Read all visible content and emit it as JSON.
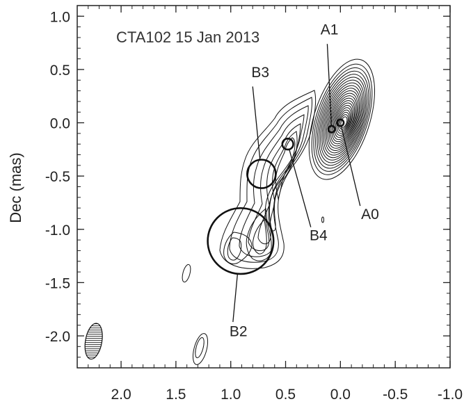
{
  "chart_data": {
    "type": "contour",
    "title": "CTA102  15 Jan 2013",
    "xlabel": "",
    "ylabel": "Dec (mas)",
    "xlim": [
      2.4,
      -1.0
    ],
    "ylim": [
      -2.3,
      1.1
    ],
    "xticks": [
      2.0,
      1.5,
      1.0,
      0.5,
      0.0,
      -0.5,
      -1.0
    ],
    "xtick_labels": [
      "2.0",
      "1.5",
      "1.0",
      "0.5",
      "0.0",
      "-0.5",
      "-1.0"
    ],
    "yticks": [
      1.0,
      0.5,
      0.0,
      -0.5,
      -1.0,
      -1.5,
      -2.0
    ],
    "ytick_labels": [
      "1.0",
      "0.5",
      "0.0",
      "-0.5",
      "-1.0",
      "-1.5",
      "-2.0"
    ],
    "grid": false,
    "components": [
      {
        "name": "A0",
        "x": 0.0,
        "y": 0.0,
        "size": 0.03,
        "label_x": -0.27,
        "label_y": -0.85,
        "leader_end": [
          -0.18,
          -0.78
        ]
      },
      {
        "name": "A1",
        "x": 0.08,
        "y": -0.06,
        "size": 0.03,
        "label_x": 0.1,
        "label_y": 0.88,
        "leader_end": [
          0.12,
          0.74
        ]
      },
      {
        "name": "B4",
        "x": 0.48,
        "y": -0.2,
        "size": 0.05,
        "label_x": 0.2,
        "label_y": -1.05,
        "leader_end": [
          0.27,
          -0.98
        ]
      },
      {
        "name": "B3",
        "x": 0.72,
        "y": -0.48,
        "size": 0.13,
        "label_x": 0.73,
        "label_y": 0.48,
        "leader_end": [
          0.8,
          0.34
        ]
      },
      {
        "name": "B2",
        "x": 0.91,
        "y": -1.11,
        "size": 0.3,
        "label_x": 0.93,
        "label_y": -1.95,
        "leader_end": [
          0.98,
          -1.87
        ]
      }
    ],
    "beam": {
      "x": 2.25,
      "y": -2.05,
      "major": 0.17,
      "minor": 0.075,
      "pa_deg": -10
    }
  }
}
